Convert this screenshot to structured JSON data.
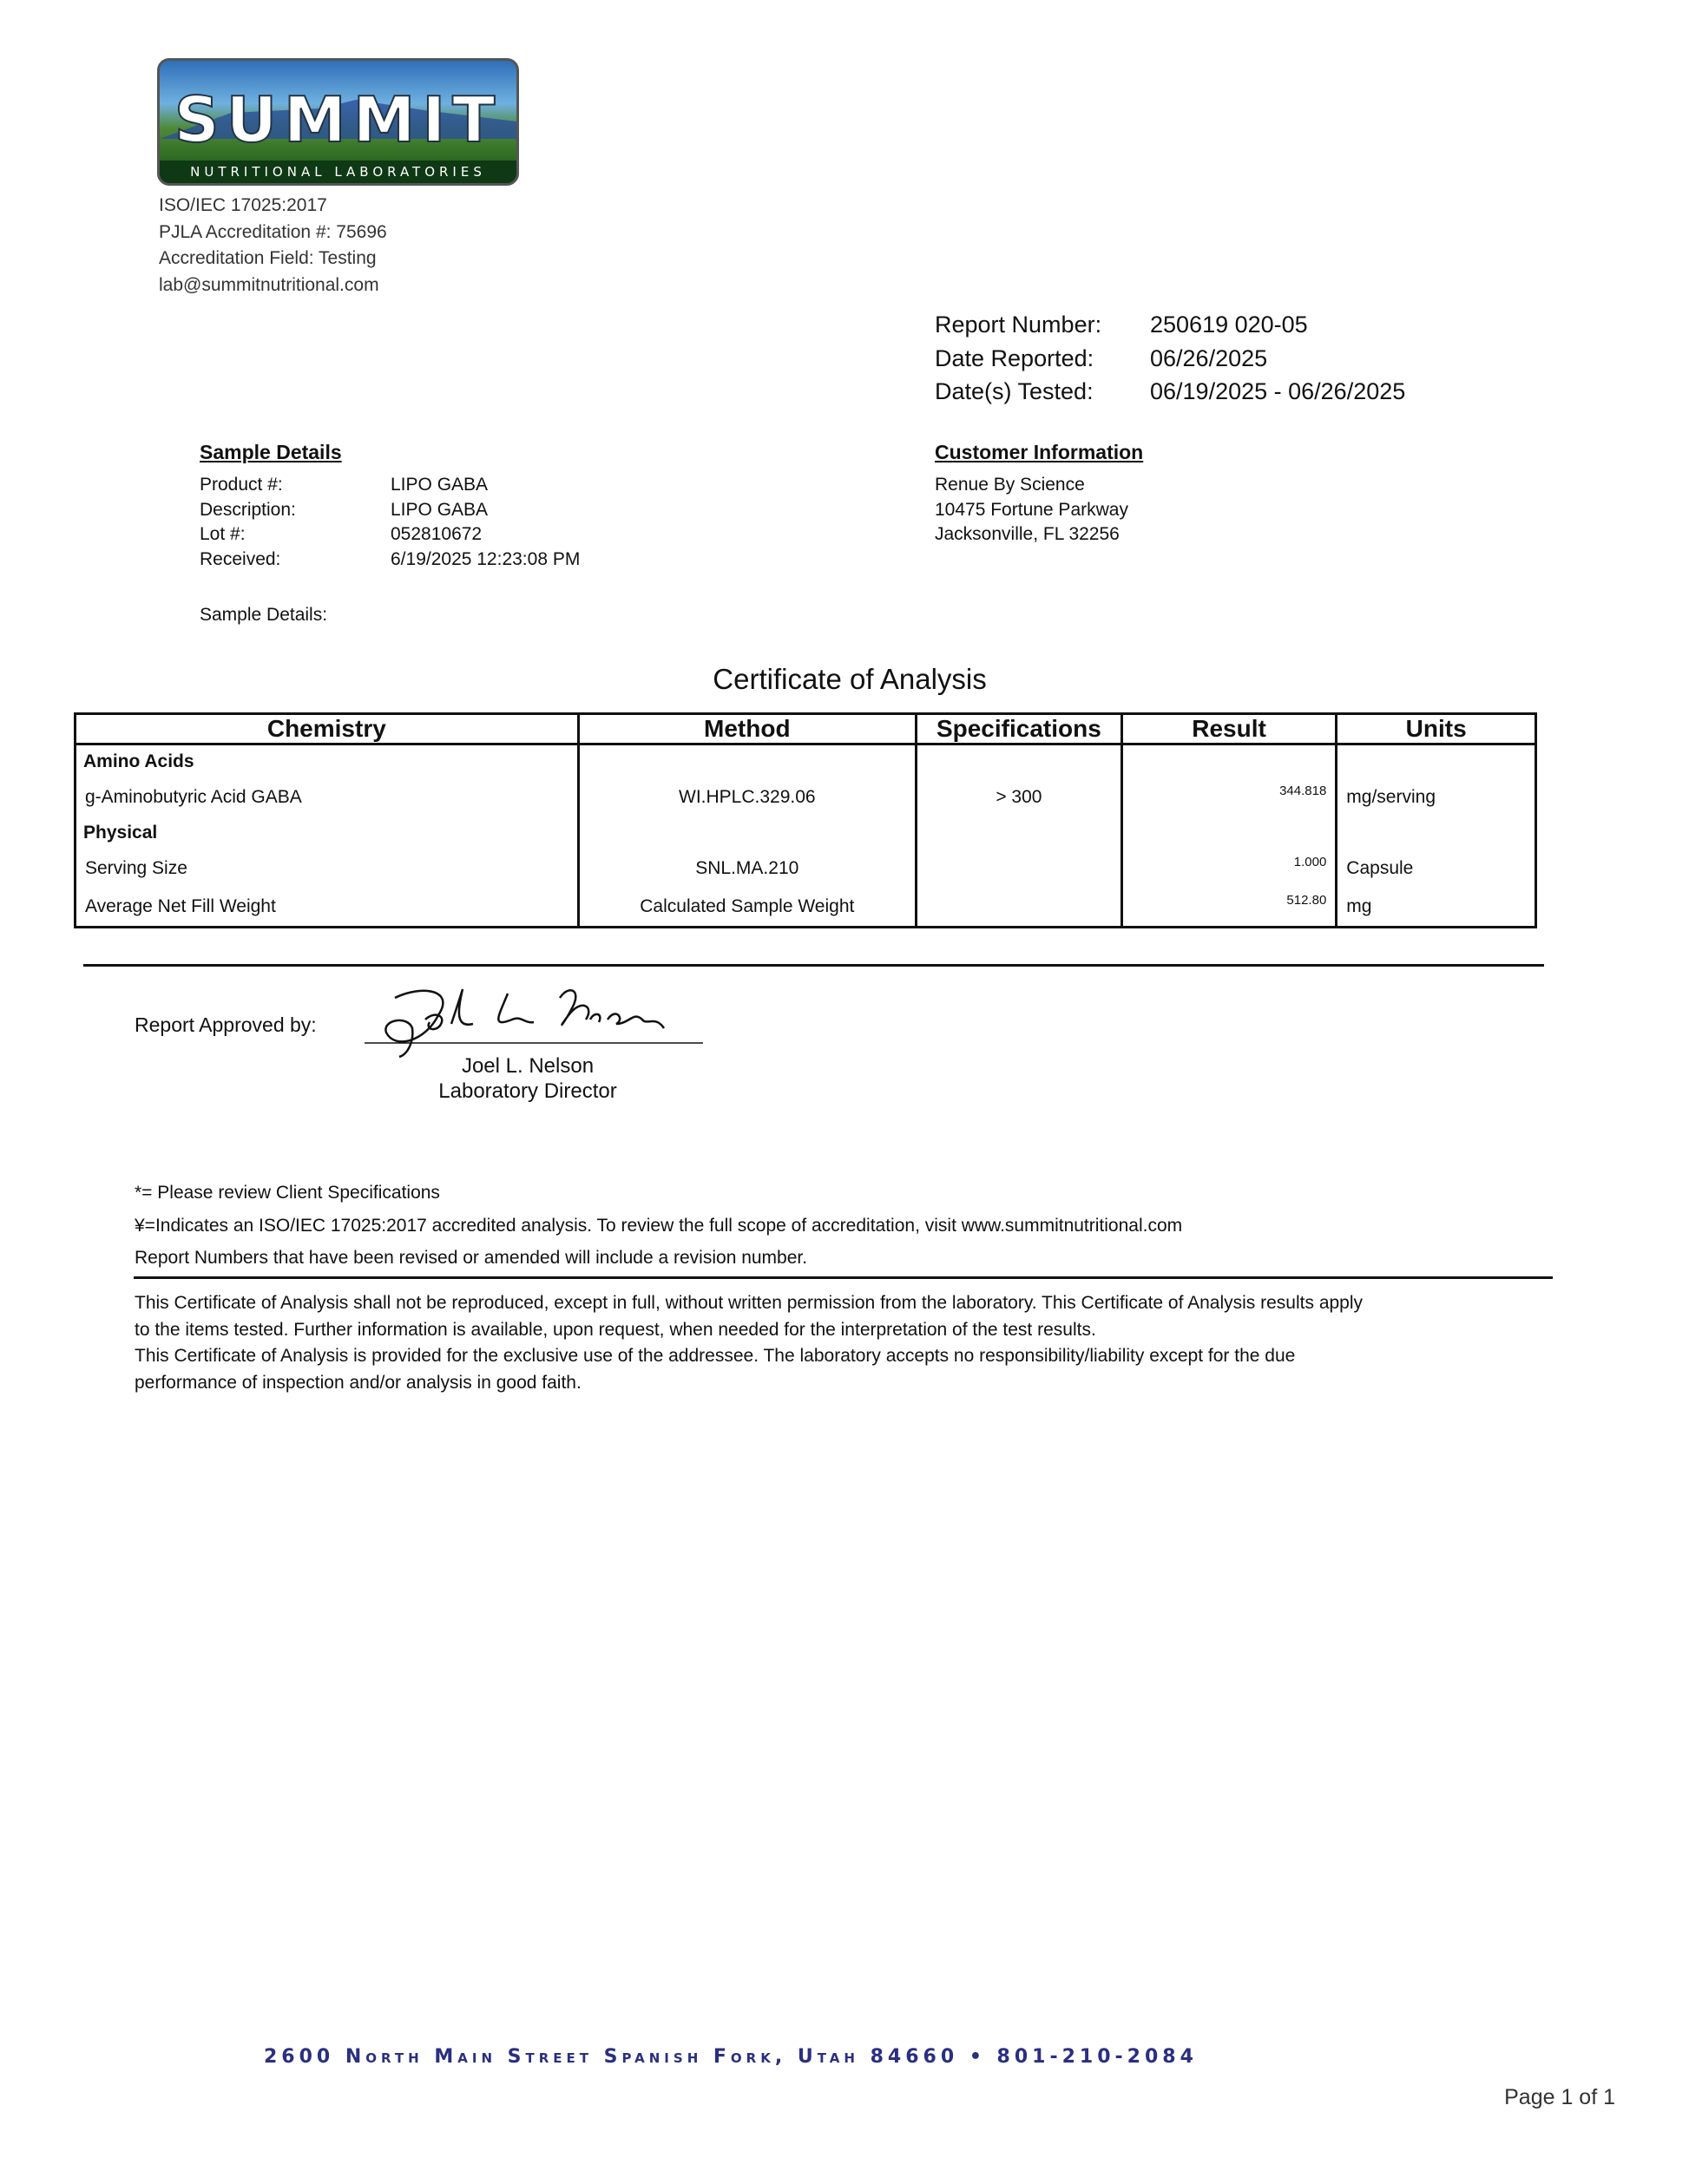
{
  "lab": {
    "logo_text": "SUMMIT",
    "logo_subtext": "NUTRITIONAL LABORATORIES",
    "accreditation_lines": [
      "ISO/IEC 17025:2017",
      "PJLA Accreditation #: 75696",
      "Accreditation Field: Testing",
      "lab@summitnutritional.com"
    ]
  },
  "report": {
    "number_label": "Report Number:",
    "number": "250619 020-05",
    "date_reported_label": "Date Reported:",
    "date_reported": "06/26/2025",
    "dates_tested_label": "Date(s) Tested:",
    "dates_tested": "06/19/2025 - 06/26/2025"
  },
  "sample": {
    "heading": "Sample Details",
    "rows": [
      {
        "label": "Product #:",
        "value": "LIPO GABA"
      },
      {
        "label": "Description:",
        "value": "LIPO GABA"
      },
      {
        "label": "Lot #:",
        "value": "052810672"
      },
      {
        "label": "Received:",
        "value": "6/19/2025 12:23:08 PM"
      }
    ],
    "details_label": "Sample Details:"
  },
  "customer": {
    "heading": "Customer Information",
    "lines": [
      "Renue By Science",
      "10475 Fortune Parkway",
      "Jacksonville, FL 32256"
    ]
  },
  "title": "Certificate of Analysis",
  "table": {
    "headers": [
      "Chemistry",
      "Method",
      "Specifications",
      "Result",
      "Units"
    ],
    "rows": [
      {
        "type": "group",
        "chemistry": "Amino Acids"
      },
      {
        "type": "item",
        "chemistry": "g-Aminobutyric Acid GABA",
        "method": "WI.HPLC.329.06",
        "spec": "> 300",
        "result": "344.818",
        "units": "mg/serving"
      },
      {
        "type": "group",
        "chemistry": "Physical"
      },
      {
        "type": "item",
        "chemistry": "Serving Size",
        "method": "SNL.MA.210",
        "spec": "",
        "result": "1.000",
        "units": "Capsule"
      },
      {
        "type": "item",
        "chemistry": "Average Net Fill Weight",
        "method": "Calculated Sample Weight",
        "spec": "",
        "result": "512.80",
        "units": "mg"
      }
    ]
  },
  "approval": {
    "label": "Report Approved by:",
    "signature": "Joel L Nelson",
    "name": "Joel L. Nelson",
    "title": "Laboratory Director"
  },
  "notes": [
    "*= Please review Client Specifications",
    "¥=Indicates an ISO/IEC 17025:2017 accredited analysis. To review the full scope of accreditation, visit www.summitnutritional.com",
    "Report Numbers that have been revised or amended will include a revision number."
  ],
  "disclaimer": [
    "This Certificate of Analysis shall not be reproduced, except in full, without written permission from the laboratory. This Certificate of Analysis results apply",
    "to the items tested. Further information is available, upon request, when needed for the interpretation of the test results.",
    "This Certificate of Analysis is provided for the exclusive use of the addressee. The laboratory accepts no responsibility/liability except for the due",
    "performance of inspection and/or analysis in good faith."
  ],
  "footer": {
    "address": "2600 North Main Street  Spanish Fork, Utah  84660 • 801-210-2084",
    "page": "Page 1 of 1",
    "address_color": "#2a2f80"
  }
}
